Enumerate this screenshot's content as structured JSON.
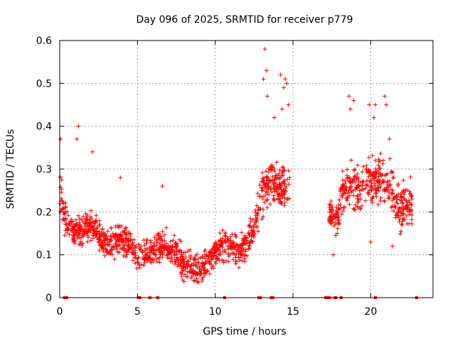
{
  "chart_data": {
    "type": "scatter",
    "title": "Day 096 of 2025, SRMTID for receiver p779",
    "xlabel": "GPS time / hours",
    "ylabel": "SRMTID / TECUs",
    "xlim": [
      0,
      24
    ],
    "ylim": [
      0,
      0.6
    ],
    "x_ticks": [
      0,
      5,
      10,
      15,
      20
    ],
    "y_ticks": [
      0,
      0.1,
      0.2,
      0.3,
      0.4,
      0.5,
      0.6
    ],
    "x_tick_labels": [
      "0",
      "5",
      "10",
      "15",
      "20"
    ],
    "y_tick_labels": [
      "0",
      "0.1",
      "0.2",
      "0.3",
      "0.4",
      "0.5",
      "0.6"
    ],
    "grid": true,
    "marker": "plus",
    "color": "#ff0000",
    "series": [
      {
        "name": "SRMTID",
        "profile_x": [
          0.0,
          0.2,
          0.5,
          1.0,
          1.5,
          2.0,
          2.5,
          3.0,
          3.5,
          4.0,
          4.5,
          5.0,
          5.5,
          6.0,
          6.5,
          7.0,
          7.5,
          8.0,
          8.5,
          9.0,
          9.5,
          10.0,
          10.5,
          11.0,
          11.5,
          12.0,
          12.5,
          13.0,
          13.5,
          14.0,
          14.5,
          14.8,
          17.3,
          17.8,
          18.3,
          18.8,
          19.3,
          19.8,
          20.3,
          20.8,
          21.3,
          21.8,
          22.3,
          22.7
        ],
        "profile_y": [
          0.25,
          0.22,
          0.17,
          0.15,
          0.16,
          0.17,
          0.15,
          0.12,
          0.13,
          0.13,
          0.13,
          0.09,
          0.1,
          0.11,
          0.12,
          0.12,
          0.1,
          0.08,
          0.07,
          0.06,
          0.08,
          0.11,
          0.12,
          0.12,
          0.11,
          0.12,
          0.17,
          0.24,
          0.28,
          0.26,
          0.25,
          0.26,
          0.2,
          0.18,
          0.25,
          0.27,
          0.24,
          0.26,
          0.28,
          0.27,
          0.26,
          0.22,
          0.21,
          0.22
        ],
        "spread": 0.05,
        "peaks": [
          {
            "x": 0.05,
            "y": 0.37
          },
          {
            "x": 1.2,
            "y": 0.4
          },
          {
            "x": 1.1,
            "y": 0.37
          },
          {
            "x": 2.1,
            "y": 0.34
          },
          {
            "x": 3.9,
            "y": 0.28
          },
          {
            "x": 6.6,
            "y": 0.26
          },
          {
            "x": 13.2,
            "y": 0.58
          },
          {
            "x": 13.3,
            "y": 0.53
          },
          {
            "x": 13.1,
            "y": 0.51
          },
          {
            "x": 13.35,
            "y": 0.47
          },
          {
            "x": 13.8,
            "y": 0.42
          },
          {
            "x": 14.2,
            "y": 0.52
          },
          {
            "x": 14.5,
            "y": 0.51
          },
          {
            "x": 14.6,
            "y": 0.5
          },
          {
            "x": 14.4,
            "y": 0.49
          },
          {
            "x": 14.7,
            "y": 0.45
          },
          {
            "x": 14.3,
            "y": 0.44
          },
          {
            "x": 18.6,
            "y": 0.47
          },
          {
            "x": 18.9,
            "y": 0.46
          },
          {
            "x": 18.7,
            "y": 0.44
          },
          {
            "x": 19.9,
            "y": 0.45
          },
          {
            "x": 20.3,
            "y": 0.45
          },
          {
            "x": 20.2,
            "y": 0.42
          },
          {
            "x": 20.9,
            "y": 0.47
          },
          {
            "x": 21.0,
            "y": 0.45
          },
          {
            "x": 21.2,
            "y": 0.37
          },
          {
            "x": 17.6,
            "y": 0.1
          },
          {
            "x": 20.0,
            "y": 0.13
          },
          {
            "x": 21.4,
            "y": 0.12
          }
        ]
      }
    ],
    "baseline_marks_x": [
      0.3,
      0.45,
      5.05,
      5.15,
      5.8,
      6.3,
      10.6,
      12.8,
      12.9,
      13.6,
      13.7,
      17.1,
      17.2,
      17.35,
      17.7,
      17.75,
      18.1,
      20.3,
      22.95
    ]
  }
}
